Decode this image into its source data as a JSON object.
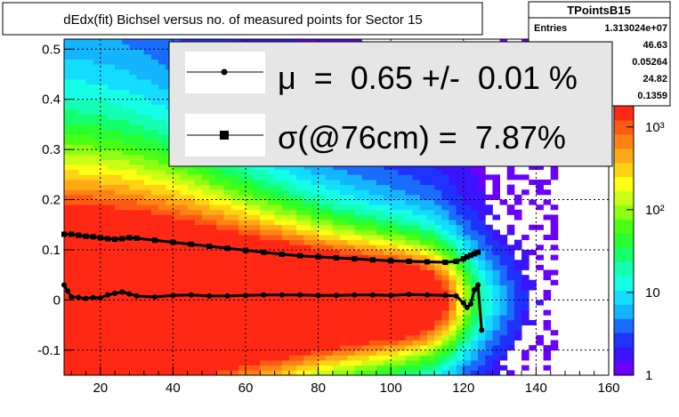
{
  "title": "dEdx(fit) Bichsel versus no. of measured points for Sector 15",
  "stats": {
    "name": "TPointsB15",
    "entries_label": "Entries",
    "entries_value": "1.313024e+07",
    "values": [
      "46.63",
      "0.05264",
      "24.82",
      "0.1359"
    ]
  },
  "legend": {
    "mu_text": "μ  =  0.65 +/-  0.01 %",
    "sigma_text": "σ(@76cm) =  7.87%"
  },
  "colors": {
    "marker": "#000000",
    "legend_bg": "#e6e6e6",
    "palette": [
      "#6a00ff",
      "#3b14ff",
      "#1f32ff",
      "#1a6cff",
      "#14b4ff",
      "#13dcff",
      "#14ffe6",
      "#14ffb4",
      "#14ff6e",
      "#28ff32",
      "#4bff14",
      "#8cff14",
      "#c8ff14",
      "#ffff14",
      "#ffd214",
      "#ffaa14",
      "#ff8214",
      "#ff5a14",
      "#ff2814"
    ]
  },
  "chart_data": {
    "type": "heatmap",
    "title": "dEdx(fit) Bichsel versus no. of measured points for Sector 15",
    "xlabel": "",
    "ylabel": "",
    "xlim": [
      10,
      160
    ],
    "ylim": [
      -0.15,
      0.52
    ],
    "log_z": true,
    "zlim": [
      1,
      1800
    ],
    "grid": true,
    "x_ticks": [
      20,
      40,
      60,
      80,
      100,
      120,
      140,
      160
    ],
    "x_tick_labels": [
      "20",
      "40",
      "60",
      "80",
      "100",
      "120",
      "140",
      "160"
    ],
    "y_ticks": [
      -0.1,
      0,
      0.1,
      0.2,
      0.3,
      0.4,
      0.5
    ],
    "y_tick_labels": [
      "-0.1",
      "0",
      "0.1",
      "0.2",
      "0.3",
      "0.4",
      "0.5"
    ],
    "z_ticks": [
      1,
      10,
      100,
      1000
    ],
    "z_tick_labels": [
      "1",
      "10",
      "10²",
      "10³"
    ],
    "series": [
      {
        "marker": "circle",
        "x": [
          10,
          11,
          12,
          14,
          16,
          18,
          20,
          22,
          24,
          26,
          28,
          30,
          35,
          40,
          45,
          50,
          55,
          60,
          65,
          70,
          75,
          80,
          85,
          90,
          95,
          100,
          105,
          110,
          115,
          118,
          120,
          121,
          122,
          123,
          124,
          125
        ],
        "y": [
          0.03,
          0.018,
          0.006,
          0.005,
          0.003,
          0.005,
          0.004,
          0.01,
          0.013,
          0.016,
          0.012,
          0.008,
          0.006,
          0.009,
          0.01,
          0.008,
          0.008,
          0.009,
          0.01,
          0.01,
          0.01,
          0.009,
          0.009,
          0.01,
          0.01,
          0.009,
          0.011,
          0.01,
          0.009,
          0.008,
          -0.006,
          -0.015,
          -0.008,
          0.02,
          0.03,
          -0.06
        ]
      },
      {
        "marker": "square",
        "x": [
          10,
          12,
          14,
          16,
          18,
          20,
          22,
          24,
          26,
          28,
          30,
          35,
          40,
          45,
          50,
          55,
          60,
          65,
          70,
          75,
          80,
          85,
          90,
          95,
          100,
          105,
          110,
          115,
          118,
          120,
          121,
          122,
          123,
          124
        ],
        "y": [
          0.131,
          0.131,
          0.129,
          0.127,
          0.126,
          0.124,
          0.122,
          0.121,
          0.122,
          0.124,
          0.123,
          0.119,
          0.115,
          0.111,
          0.107,
          0.103,
          0.099,
          0.095,
          0.091,
          0.088,
          0.086,
          0.084,
          0.082,
          0.08,
          0.078,
          0.077,
          0.076,
          0.075,
          0.077,
          0.082,
          0.086,
          0.089,
          0.092,
          0.095
        ]
      }
    ]
  }
}
